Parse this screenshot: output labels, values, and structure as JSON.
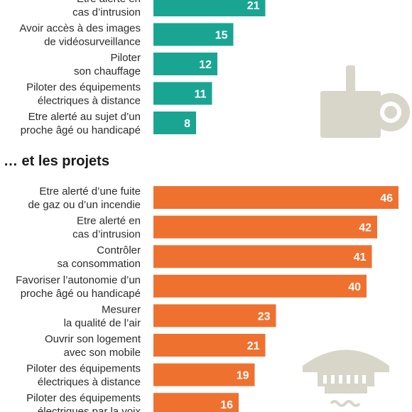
{
  "chart_data": [
    {
      "type": "bar",
      "title": "",
      "color": "#1aa592",
      "categories": [
        [
          "Etre alerté en",
          "cas d’intrusion"
        ],
        [
          "Avoir accès à des images",
          "de vidéosurveillance"
        ],
        [
          "Piloter",
          "son chauffage"
        ],
        [
          "Piloter des équipements",
          "électriques à distance"
        ],
        [
          "Etre alerté au sujet d’un",
          "proche âgé ou handicapé"
        ]
      ],
      "values": [
        21,
        15,
        12,
        11,
        8
      ]
    },
    {
      "type": "bar",
      "title": "… et les projets",
      "color": "#ef7130",
      "categories": [
        [
          "Etre alerté d’une fuite",
          "de gaz ou d’un incendie"
        ],
        [
          "Etre alerté en",
          "cas d’intrusion"
        ],
        [
          "Contrôler",
          "sa consommation"
        ],
        [
          "Favoriser l’autonomie d’un",
          "proche âgé ou handicapé"
        ],
        [
          "Mesurer",
          "la qualité de l’air"
        ],
        [
          "Ouvrir son logement",
          "avec son mobile"
        ],
        [
          "Piloter des équipements",
          "électriques à distance"
        ],
        [
          "Piloter des équipements",
          "électriques par la voix"
        ]
      ],
      "values": [
        46,
        42,
        41,
        40,
        23,
        21,
        19,
        16
      ]
    }
  ],
  "icons": {
    "top": "security-camera-icon",
    "bottom": "smoke-detector-icon",
    "color": "#d8d5c9"
  }
}
